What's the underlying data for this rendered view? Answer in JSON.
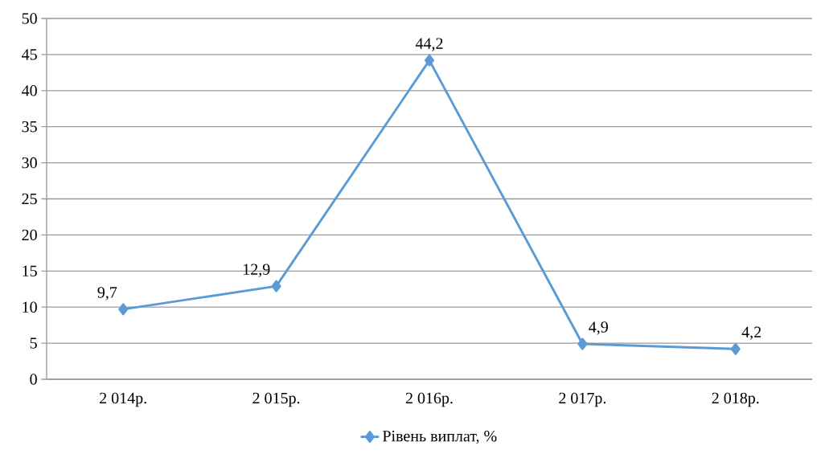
{
  "chart_data": {
    "type": "line",
    "categories": [
      "2 014р.",
      "2 015р.",
      "2 016р.",
      "2 017р.",
      "2 018р."
    ],
    "series": [
      {
        "name": "Рівень виплат, %",
        "color": "#5b9bd5",
        "values": [
          9.7,
          12.9,
          44.2,
          4.9,
          4.2
        ],
        "value_labels": [
          "9,7",
          "12,9",
          "44,2",
          "4,9",
          "4,2"
        ]
      }
    ],
    "ylim": [
      0,
      50
    ],
    "yticks": [
      0,
      5,
      10,
      15,
      20,
      25,
      30,
      35,
      40,
      45,
      50
    ],
    "grid": "y",
    "legend": "bottom",
    "marker": "diamond",
    "line_style": "solid"
  }
}
